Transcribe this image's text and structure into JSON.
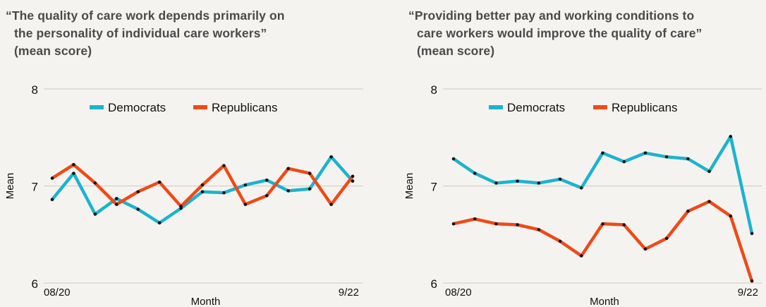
{
  "chart_data": [
    {
      "type": "line",
      "title": [
        "“The quality of care work depends primarily on",
        "the personality of individual care workers”",
        "(mean score)"
      ],
      "xlabel": "Month",
      "ylabel": "Mean",
      "ylim": [
        6,
        8
      ],
      "yticks": [
        "6",
        "7",
        "8"
      ],
      "x_tick_labels": {
        "first": "08/20",
        "last": "9/22"
      },
      "grid": true,
      "legend_position": "top-center",
      "series": [
        {
          "name": "Democrats",
          "color": "#1bb3cf",
          "values": [
            6.86,
            7.13,
            6.71,
            6.87,
            6.76,
            6.62,
            6.77,
            6.94,
            6.93,
            7.01,
            7.06,
            6.95,
            6.97,
            7.3,
            7.05
          ]
        },
        {
          "name": "Republicans",
          "color": "#ef4a17",
          "values": [
            7.08,
            7.22,
            7.03,
            6.81,
            6.94,
            7.04,
            6.79,
            7.01,
            7.21,
            6.81,
            6.9,
            7.18,
            7.13,
            6.81,
            7.1
          ]
        }
      ]
    },
    {
      "type": "line",
      "title": [
        "“Providing better pay and working conditions to",
        "care workers would improve the quality of care”",
        "(mean score)"
      ],
      "xlabel": "Month",
      "ylabel": "Mean",
      "ylim": [
        6,
        8
      ],
      "yticks": [
        "6",
        "7",
        "8"
      ],
      "x_tick_labels": {
        "first": "08/20",
        "last": "9/22"
      },
      "grid": true,
      "legend_position": "top-center",
      "series": [
        {
          "name": "Democrats",
          "color": "#1bb3cf",
          "values": [
            7.28,
            7.13,
            7.03,
            7.05,
            7.03,
            7.07,
            6.98,
            7.34,
            7.25,
            7.34,
            7.3,
            7.28,
            7.15,
            7.51,
            6.51
          ]
        },
        {
          "name": "Republicans",
          "color": "#ef4a17",
          "values": [
            6.61,
            6.66,
            6.61,
            6.6,
            6.55,
            6.43,
            6.28,
            6.61,
            6.6,
            6.35,
            6.46,
            6.74,
            6.84,
            6.69,
            6.02
          ]
        }
      ]
    }
  ]
}
